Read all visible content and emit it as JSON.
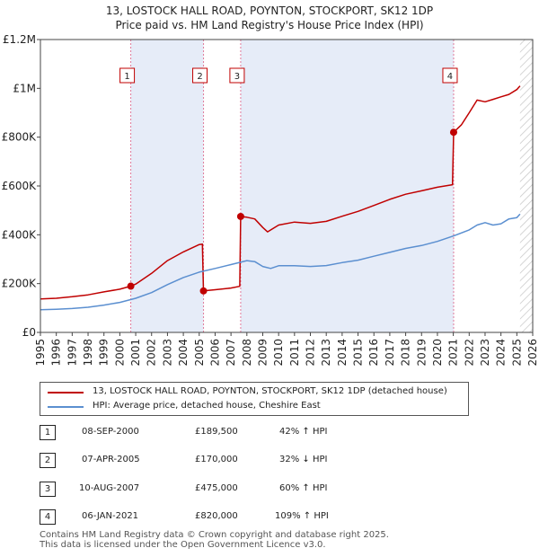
{
  "header": {
    "title": "13, LOSTOCK HALL ROAD, POYNTON, STOCKPORT, SK12 1DP",
    "subtitle": "Price paid vs. HM Land Registry's House Price Index (HPI)"
  },
  "colors": {
    "property": "#c00000",
    "hpi": "#5b8fd0",
    "shade": "#e6ecf8",
    "marker_line": "#e07a9a"
  },
  "chart_data": {
    "type": "line",
    "title": "13, LOSTOCK HALL ROAD, POYNTON, STOCKPORT, SK12 1DP",
    "xlim": [
      1995,
      2026
    ],
    "ylim": [
      0,
      1200000
    ],
    "y_ticks": [
      {
        "value": 0,
        "label": "£0"
      },
      {
        "value": 200000,
        "label": "£200K"
      },
      {
        "value": 400000,
        "label": "£400K"
      },
      {
        "value": 600000,
        "label": "£600K"
      },
      {
        "value": 800000,
        "label": "£800K"
      },
      {
        "value": 1000000,
        "label": "£1M"
      },
      {
        "value": 1200000,
        "label": "£1.2M"
      }
    ],
    "x_ticks": [
      "1995",
      "1996",
      "1997",
      "1998",
      "1999",
      "2000",
      "2001",
      "2002",
      "2003",
      "2004",
      "2005",
      "2006",
      "2007",
      "2008",
      "2009",
      "2010",
      "2011",
      "2012",
      "2013",
      "2014",
      "2015",
      "2016",
      "2017",
      "2018",
      "2019",
      "2020",
      "2021",
      "2022",
      "2023",
      "2024",
      "2025",
      "2026"
    ],
    "shaded_periods": [
      [
        2000.69,
        2005.27
      ],
      [
        2007.61,
        2021.02
      ]
    ],
    "hatched_from": 2025.2,
    "series": [
      {
        "name": "13, LOSTOCK HALL ROAD, POYNTON, STOCKPORT, SK12 1DP (detached house)",
        "x": [
          1995,
          1996,
          1997,
          1998,
          1999,
          2000,
          2000.69,
          2001,
          2002,
          2003,
          2004,
          2005,
          2005.2,
          2005.27,
          2006,
          2007,
          2007.55,
          2007.61,
          2008,
          2008.5,
          2009,
          2009.3,
          2010,
          2011,
          2012,
          2013,
          2014,
          2015,
          2016,
          2017,
          2018,
          2019,
          2020,
          2020.95,
          2021.02,
          2021.5,
          2022,
          2022.5,
          2023,
          2023.5,
          2024,
          2024.5,
          2025,
          2025.2
        ],
        "values": [
          137000,
          140000,
          146000,
          154000,
          166000,
          177000,
          189500,
          198000,
          242000,
          294000,
          330000,
          360000,
          362000,
          170000,
          175000,
          182000,
          189000,
          475000,
          472000,
          465000,
          430000,
          412000,
          440000,
          452000,
          447000,
          455000,
          476000,
          496000,
          520000,
          545000,
          566000,
          580000,
          595000,
          605000,
          820000,
          850000,
          900000,
          952000,
          945000,
          955000,
          965000,
          975000,
          995000,
          1010000
        ]
      },
      {
        "name": "HPI: Average price, detached house, Cheshire East",
        "x": [
          1995,
          1996,
          1997,
          1998,
          1999,
          2000,
          2001,
          2002,
          2003,
          2004,
          2005,
          2006,
          2007,
          2008,
          2008.5,
          2009,
          2009.5,
          2010,
          2011,
          2012,
          2013,
          2014,
          2015,
          2016,
          2017,
          2018,
          2019,
          2020,
          2021,
          2022,
          2022.5,
          2023,
          2023.5,
          2024,
          2024.5,
          2025,
          2025.2
        ],
        "values": [
          93000,
          95000,
          98000,
          103000,
          112000,
          123000,
          140000,
          163000,
          196000,
          225000,
          247000,
          262000,
          278000,
          294000,
          290000,
          270000,
          262000,
          273000,
          273000,
          270000,
          274000,
          286000,
          296000,
          312000,
          328000,
          344000,
          356000,
          373000,
          395000,
          420000,
          440000,
          450000,
          440000,
          445000,
          465000,
          470000,
          485000
        ]
      }
    ],
    "sales": [
      {
        "label": "1",
        "x": 2000.69,
        "value": 189500
      },
      {
        "label": "2",
        "x": 2005.27,
        "value": 170000
      },
      {
        "label": "3",
        "x": 2007.61,
        "value": 475000
      },
      {
        "label": "4",
        "x": 2021.02,
        "value": 820000
      }
    ]
  },
  "legend": {
    "property": "13, LOSTOCK HALL ROAD, POYNTON, STOCKPORT, SK12 1DP (detached house)",
    "hpi": "HPI: Average price, detached house, Cheshire East"
  },
  "transactions": [
    {
      "num": "1",
      "date": "08-SEP-2000",
      "price": "£189,500",
      "hpi": "42% ↑ HPI"
    },
    {
      "num": "2",
      "date": "07-APR-2005",
      "price": "£170,000",
      "hpi": "32% ↓ HPI"
    },
    {
      "num": "3",
      "date": "10-AUG-2007",
      "price": "£475,000",
      "hpi": "60% ↑ HPI"
    },
    {
      "num": "4",
      "date": "06-JAN-2021",
      "price": "£820,000",
      "hpi": "109% ↑ HPI"
    }
  ],
  "footer": {
    "line1": "Contains HM Land Registry data © Crown copyright and database right 2025.",
    "line2": "This data is licensed under the Open Government Licence v3.0."
  }
}
